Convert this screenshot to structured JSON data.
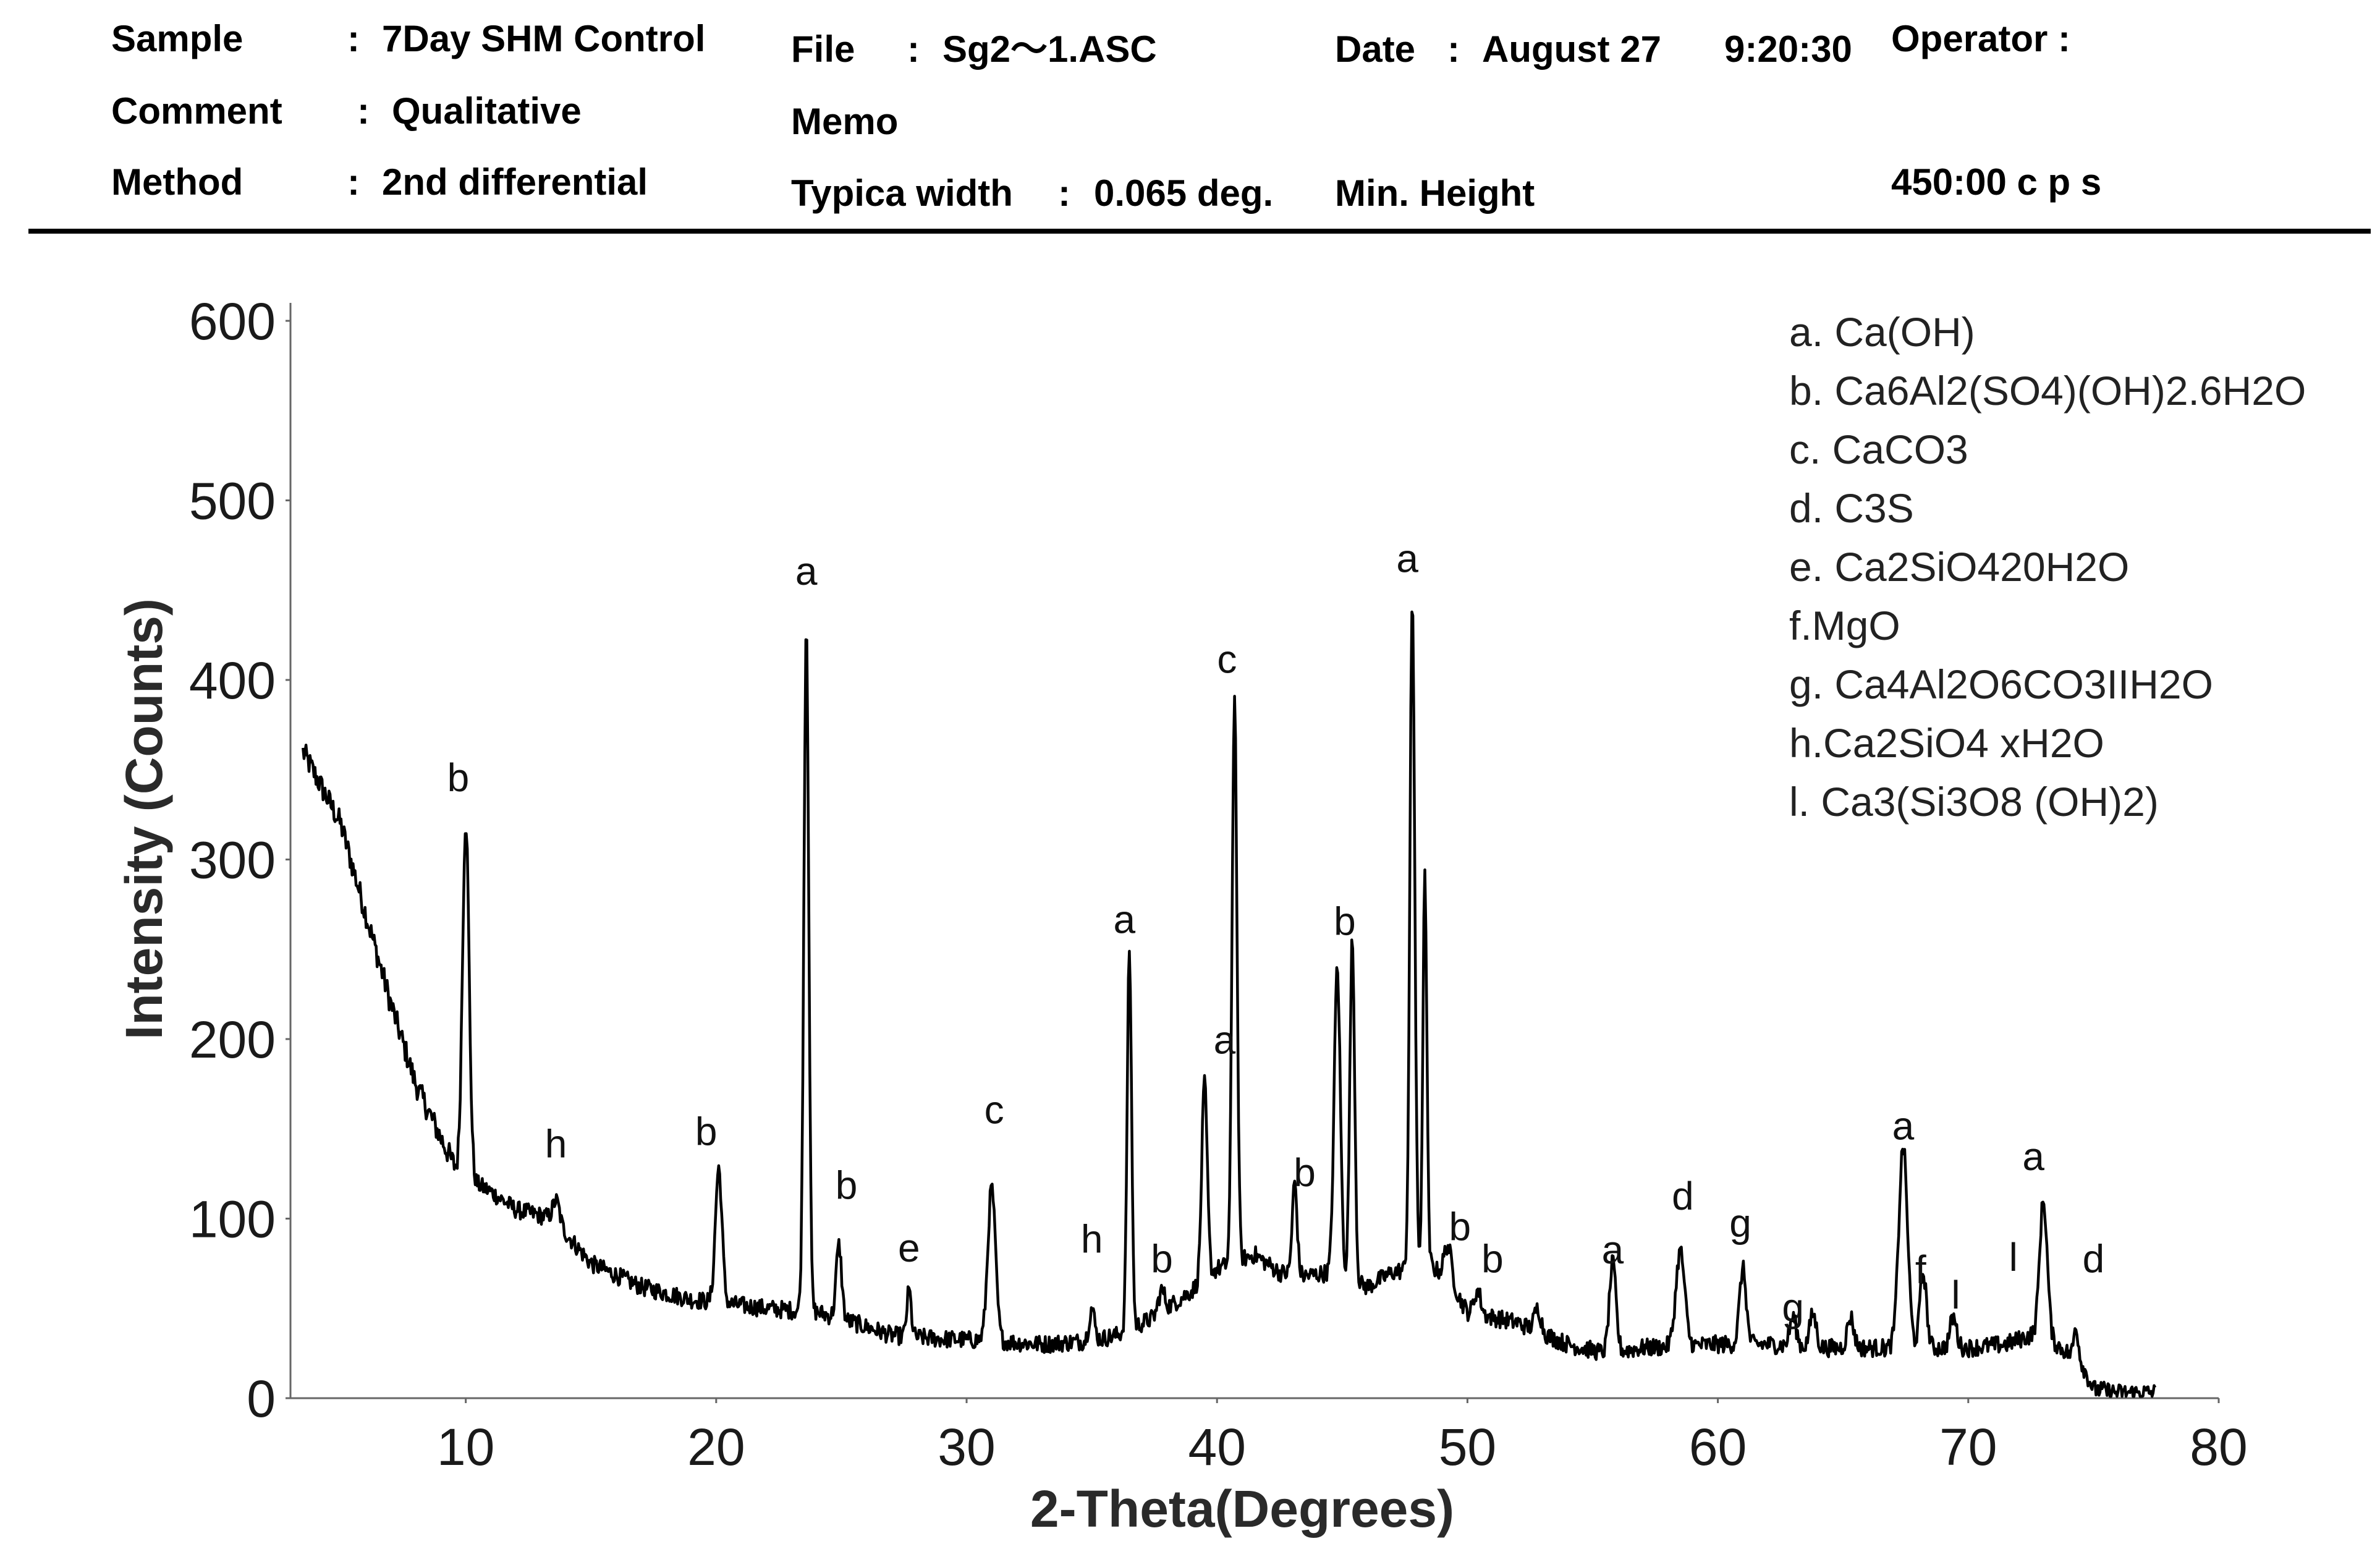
{
  "header": {
    "sample_label": "Sample",
    "sample_sep": ":",
    "sample_value": "7Day SHM Control",
    "comment_label": "Comment",
    "comment_sep": ":",
    "comment_value": "Qualitative",
    "method_label": "Method",
    "method_sep": ":",
    "method_value": "2nd differential",
    "file_label": "File",
    "file_sep": ":",
    "file_value": "Sg2～1.ASC",
    "memo_label": "Memo",
    "typical_width_label": "Typica width",
    "typical_width_sep": ":",
    "typical_width_value": "0.065 deg.",
    "date_label": "Date",
    "date_sep": ":",
    "date_value": "August 27",
    "time_value": "9:20:30",
    "min_height_label": "Min. Height",
    "operator_label": "Operator :",
    "min_height_value": "450:00 c p s"
  },
  "chart_data": {
    "type": "line",
    "title": "",
    "xlabel": "2-Theta(Degrees)",
    "ylabel": "Intensity (Counts)",
    "xlim": [
      3,
      80
    ],
    "ylim": [
      0,
      610
    ],
    "x_ticks": [
      10,
      20,
      30,
      40,
      50,
      60,
      70,
      80
    ],
    "y_ticks": [
      0,
      100,
      200,
      300,
      400,
      500,
      600
    ],
    "x_tick_labels": [
      "10",
      "20",
      "30",
      "40",
      "50",
      "60",
      "70",
      "80"
    ],
    "y_tick_labels": [
      "0",
      "100",
      "200",
      "300",
      "400",
      "500",
      "600"
    ],
    "grid": false,
    "background": [
      [
        3.5,
        360
      ],
      [
        5,
        320
      ],
      [
        6,
        270
      ],
      [
        7,
        220
      ],
      [
        8,
        175
      ],
      [
        9,
        145
      ],
      [
        9.7,
        125
      ],
      [
        11,
        115
      ],
      [
        12,
        105
      ],
      [
        13.5,
        100
      ],
      [
        15,
        75
      ],
      [
        17,
        62
      ],
      [
        19,
        55
      ],
      [
        22,
        50
      ],
      [
        24,
        48
      ],
      [
        25.5,
        42
      ],
      [
        27,
        35
      ],
      [
        29,
        33
      ],
      [
        31,
        32
      ],
      [
        33,
        30
      ],
      [
        35,
        32
      ],
      [
        36,
        35
      ],
      [
        37.5,
        45
      ],
      [
        39,
        60
      ],
      [
        40,
        72
      ],
      [
        41.5,
        80
      ],
      [
        42.5,
        70
      ],
      [
        43.5,
        68
      ],
      [
        44.5,
        70
      ],
      [
        46,
        62
      ],
      [
        47,
        70
      ],
      [
        48.5,
        75
      ],
      [
        49.5,
        60
      ],
      [
        50,
        48
      ],
      [
        52,
        42
      ],
      [
        54,
        30
      ],
      [
        55.5,
        25
      ],
      [
        57,
        28
      ],
      [
        60,
        30
      ],
      [
        62,
        30
      ],
      [
        64,
        28
      ],
      [
        66,
        28
      ],
      [
        68,
        28
      ],
      [
        70,
        28
      ],
      [
        71.5,
        30
      ],
      [
        72.5,
        35
      ],
      [
        73.5,
        30
      ],
      [
        74.5,
        20
      ],
      [
        75,
        5
      ],
      [
        76,
        3
      ],
      [
        77.5,
        3
      ]
    ],
    "peaks": [
      {
        "x": 10.0,
        "y": 322,
        "w": 0.3
      },
      {
        "x": 13.6,
        "y": 110,
        "w": 0.3
      },
      {
        "x": 20.1,
        "y": 128,
        "w": 0.3
      },
      {
        "x": 23.6,
        "y": 432,
        "w": 0.22
      },
      {
        "x": 24.9,
        "y": 85,
        "w": 0.25
      },
      {
        "x": 27.7,
        "y": 60,
        "w": 0.2
      },
      {
        "x": 31.0,
        "y": 117,
        "w": 0.35
      },
      {
        "x": 35.0,
        "y": 50,
        "w": 0.25
      },
      {
        "x": 36.5,
        "y": 250,
        "w": 0.2
      },
      {
        "x": 37.8,
        "y": 60,
        "w": 0.3
      },
      {
        "x": 39.5,
        "y": 175,
        "w": 0.25
      },
      {
        "x": 40.7,
        "y": 392,
        "w": 0.22
      },
      {
        "x": 43.1,
        "y": 120,
        "w": 0.22
      },
      {
        "x": 44.8,
        "y": 240,
        "w": 0.28
      },
      {
        "x": 45.4,
        "y": 255,
        "w": 0.22
      },
      {
        "x": 47.8,
        "y": 445,
        "w": 0.22
      },
      {
        "x": 48.3,
        "y": 290,
        "w": 0.18
      },
      {
        "x": 49.2,
        "y": 85,
        "w": 0.35
      },
      {
        "x": 50.4,
        "y": 60,
        "w": 0.3
      },
      {
        "x": 52.8,
        "y": 50,
        "w": 0.3
      },
      {
        "x": 55.8,
        "y": 75,
        "w": 0.3
      },
      {
        "x": 58.5,
        "y": 82,
        "w": 0.4
      },
      {
        "x": 61.0,
        "y": 72,
        "w": 0.3
      },
      {
        "x": 63.0,
        "y": 45,
        "w": 0.3
      },
      {
        "x": 63.8,
        "y": 47,
        "w": 0.3
      },
      {
        "x": 65.3,
        "y": 45,
        "w": 0.3
      },
      {
        "x": 67.4,
        "y": 140,
        "w": 0.4
      },
      {
        "x": 68.2,
        "y": 70,
        "w": 0.3
      },
      {
        "x": 69.4,
        "y": 45,
        "w": 0.3
      },
      {
        "x": 73.0,
        "y": 110,
        "w": 0.35
      },
      {
        "x": 74.3,
        "y": 40,
        "w": 0.2
      }
    ],
    "peak_annotations": [
      {
        "text": "b",
        "x": 9.7,
        "y": 338
      },
      {
        "text": "h",
        "x": 13.6,
        "y": 134
      },
      {
        "text": "b",
        "x": 19.6,
        "y": 141
      },
      {
        "text": "a",
        "x": 23.6,
        "x_label": 23.6,
        "y": 453
      },
      {
        "text": "b",
        "x": 25.2,
        "y": 111
      },
      {
        "text": "e",
        "x": 27.7,
        "y": 76
      },
      {
        "text": "c",
        "x": 31.1,
        "y": 153
      },
      {
        "text": "h",
        "x": 35.0,
        "y": 81
      },
      {
        "text": "a",
        "x": 36.3,
        "y": 259
      },
      {
        "text": "b",
        "x": 37.8,
        "y": 70
      },
      {
        "text": "a",
        "x": 40.3,
        "y": 192
      },
      {
        "text": "c",
        "x": 40.4,
        "y": 404
      },
      {
        "text": "b",
        "x": 43.5,
        "y": 118
      },
      {
        "text": "b",
        "x": 45.1,
        "y": 258
      },
      {
        "text": "a",
        "x": 47.6,
        "y": 460
      },
      {
        "text": "b",
        "x": 49.7,
        "y": 88
      },
      {
        "text": "b",
        "x": 51.0,
        "y": 70
      },
      {
        "text": "a",
        "x": 55.8,
        "y": 75
      },
      {
        "text": "d",
        "x": 58.6,
        "y": 105
      },
      {
        "text": "g",
        "x": 60.9,
        "y": 90
      },
      {
        "text": "g",
        "x": 63.0,
        "y": 43
      },
      {
        "text": "a",
        "x": 67.4,
        "y": 144
      },
      {
        "text": "f",
        "x": 68.1,
        "y": 64
      },
      {
        "text": "l",
        "x": 69.5,
        "y": 50
      },
      {
        "text": "l",
        "x": 71.8,
        "y": 71
      },
      {
        "text": "a",
        "x": 72.6,
        "y": 127
      },
      {
        "text": "d",
        "x": 75.0,
        "y": 70
      }
    ],
    "legend": {
      "position": "top-right",
      "entries": [
        "a. Ca(OH)",
        "b. Ca6Al2(SO4)(OH)2.6H2O",
        "c. CaCO3",
        "d. C3S",
        "e. Ca2SiO420H2O",
        "f.MgO",
        "g. Ca4Al2O6CO3IIH2O",
        "h.Ca2SiO4 xH2O",
        "l. Ca3(Si3O8 (OH)2)"
      ]
    },
    "line_color": "#000000"
  }
}
